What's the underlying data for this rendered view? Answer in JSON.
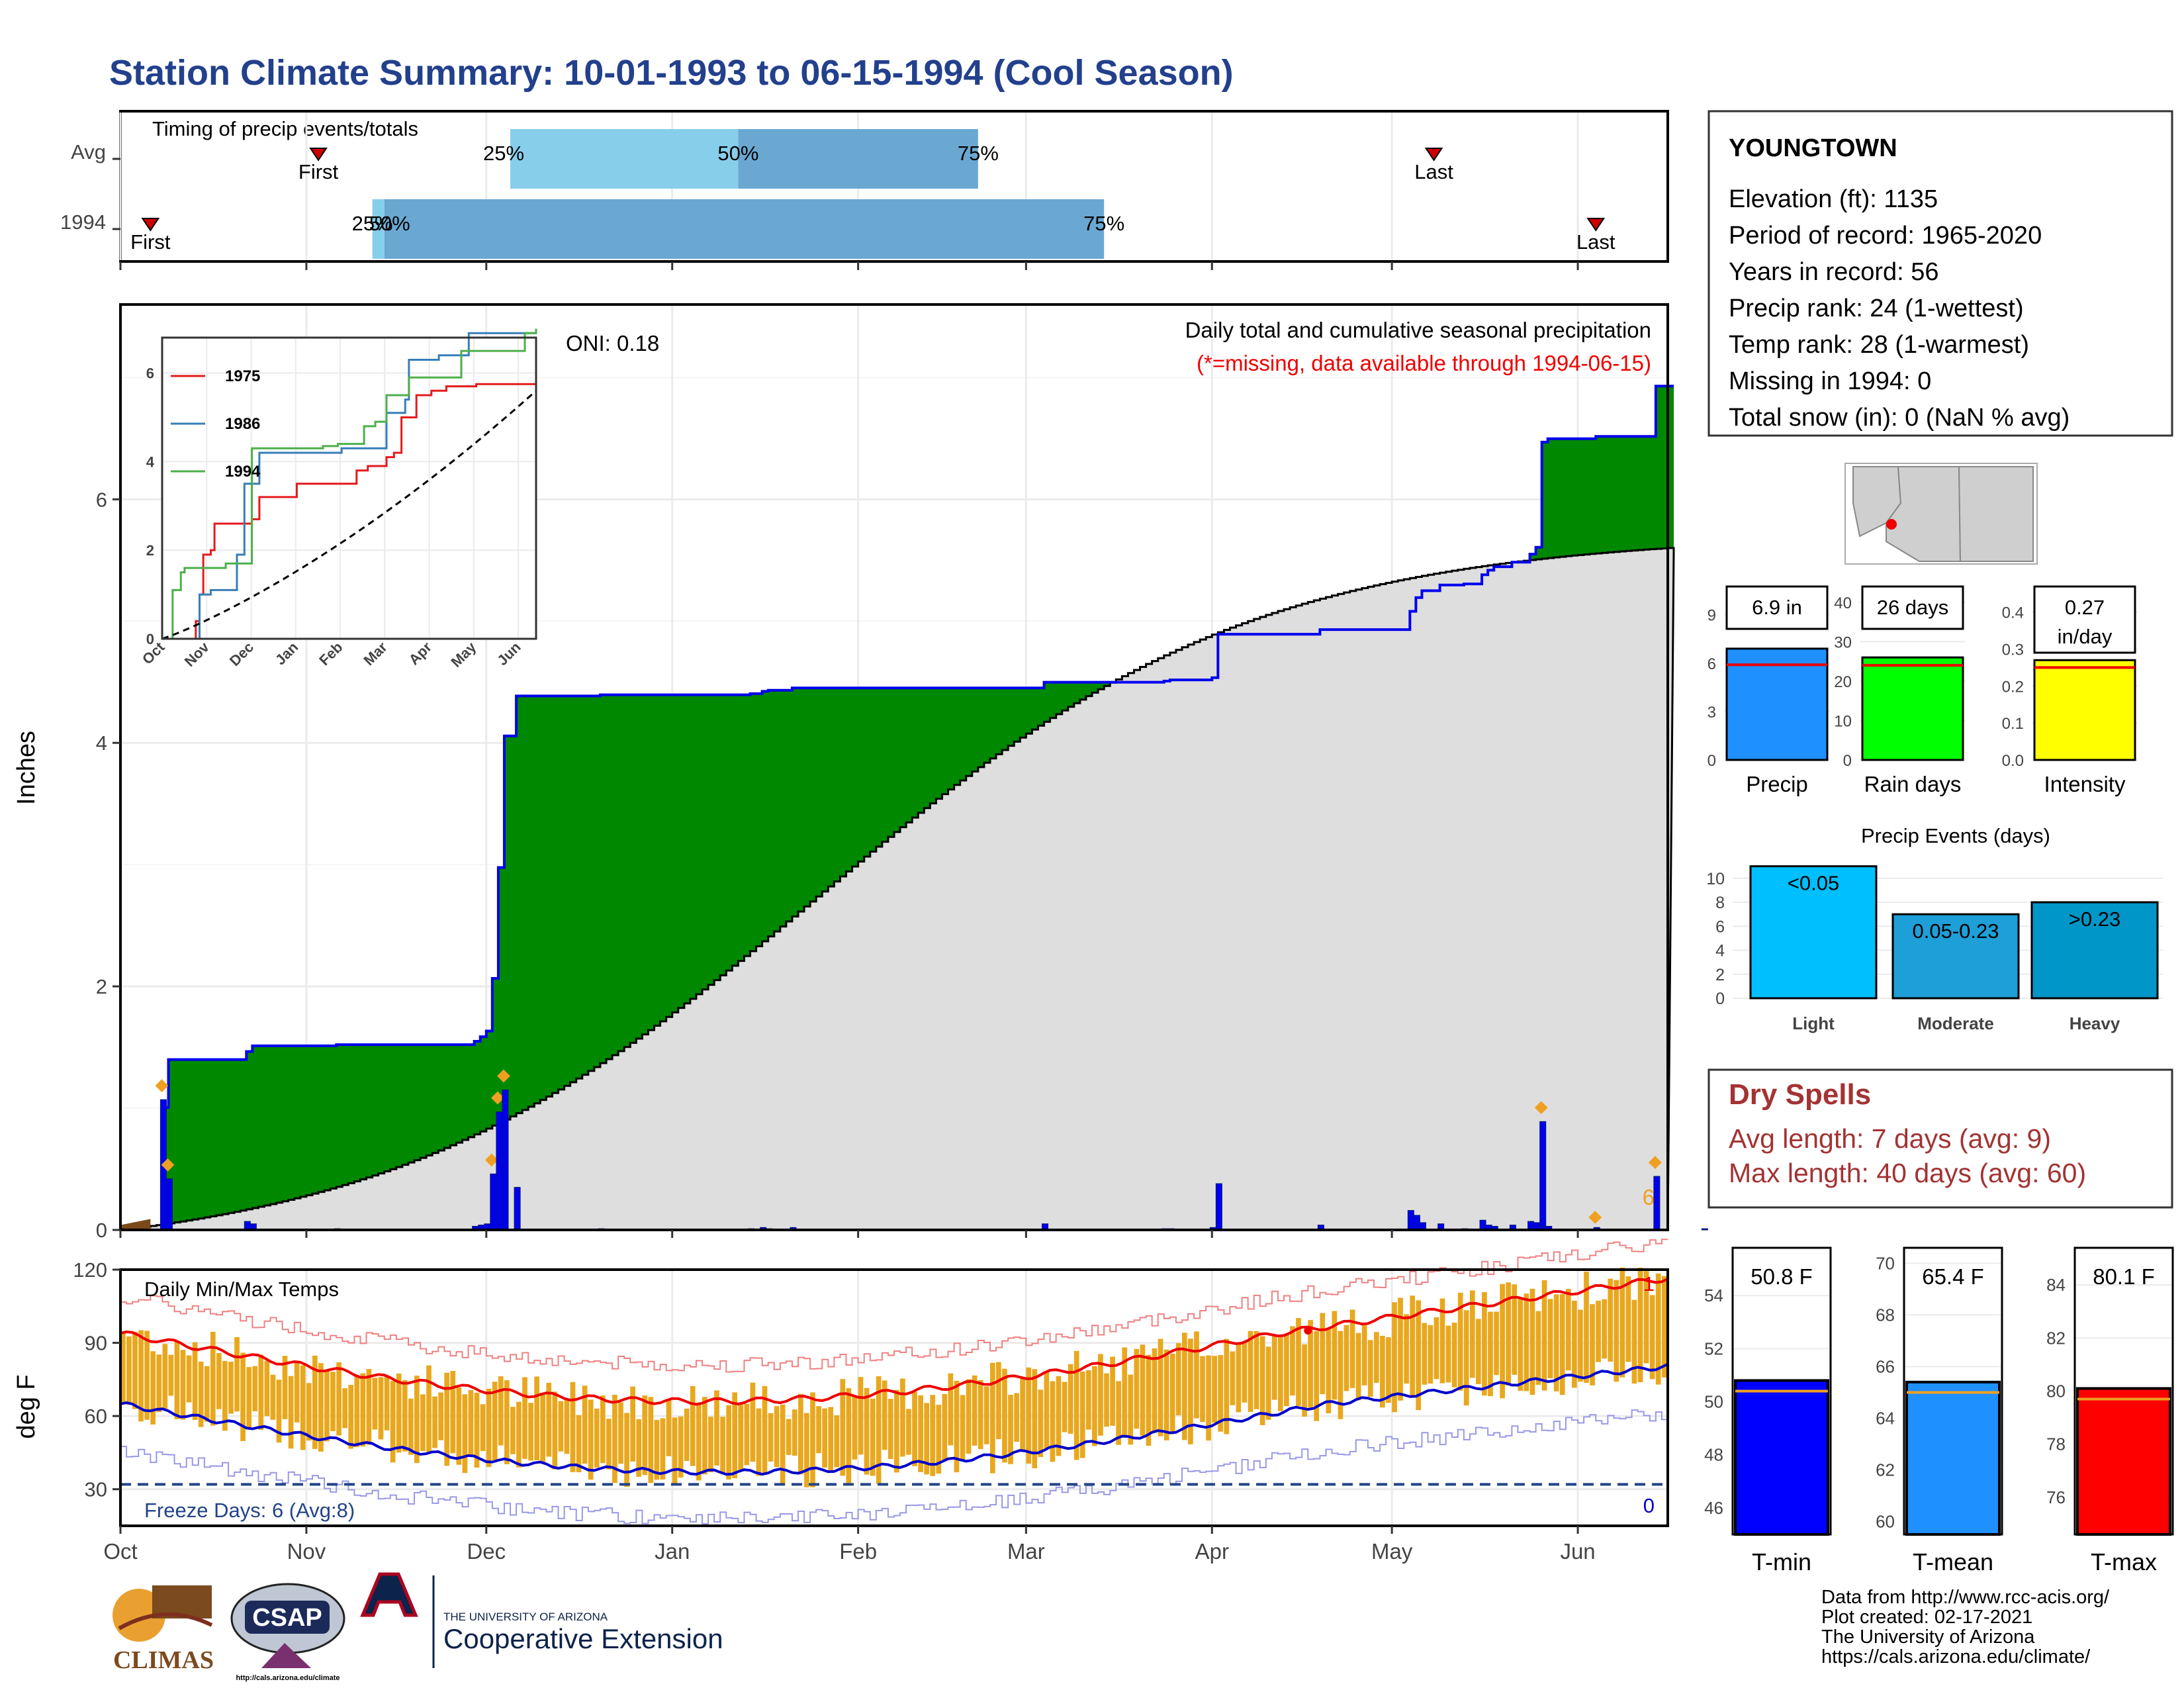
{
  "title": "Station Climate Summary: 10-01-1993 to 06-15-1994 (Cool Season)",
  "colors": {
    "title": "#22408c",
    "precip_fill": "#008800",
    "cum_avg_fill": "#dedede",
    "max_line": "#0000ee",
    "bar": "#0000ee",
    "marker": "#f0a020",
    "temp_bar": "#e8a81e",
    "tmax_line": "#ee0000",
    "tmin_line": "#0000cc",
    "tmax_rec": "#f08080",
    "tmin_rec": "#9898e8",
    "freeze": "#224488",
    "dry": "#a33333"
  },
  "timing": {
    "label": "Timing of precip events/totals",
    "rows": [
      {
        "name": "Avg",
        "first": "First",
        "last": "Last",
        "p25": "25%",
        "p50": "50%",
        "p75": "75%",
        "first_doy": 33,
        "p25_doy": 65,
        "p50_doy": 103,
        "p75_doy": 143,
        "last_doy": 219
      },
      {
        "name": "1994",
        "first": "First",
        "last": "Last",
        "p25": "25%",
        "p50": "50%",
        "p75": "75%",
        "first_doy": 5,
        "p25_doy": 42,
        "p50_doy": 44,
        "p75_doy": 164,
        "last_doy": 246
      }
    ]
  },
  "station": {
    "name": "YOUNGTOWN",
    "lines": [
      "Elevation (ft): 1135",
      "Period of record: 1965-2020",
      "Years in record: 56",
      "Precip rank: 24 (1-wettest)",
      "Temp rank: 28 (1-warmest)",
      "Missing in 1994: 0",
      "Total snow (in): 0 (NaN % avg)"
    ]
  },
  "main_plot": {
    "ylabel": "Inches",
    "oni": "ONI: 0.18",
    "caption": "Daily total and cumulative seasonal precipitation",
    "missing_note": "(*=missing, data available through 1994-06-15)",
    "count_label": "6",
    "month_labels": [
      "Oct",
      "Nov",
      "Dec",
      "Jan",
      "Feb",
      "Mar",
      "Apr",
      "May",
      "Jun"
    ],
    "y_ticks": [
      "0",
      "2",
      "4",
      "6"
    ]
  },
  "inset": {
    "month_labels": [
      "Oct",
      "Nov",
      "Dec",
      "Jan",
      "Feb",
      "Mar",
      "Apr",
      "May",
      "Jun"
    ],
    "y_ticks": [
      "0",
      "2",
      "4",
      "6"
    ],
    "legend": [
      {
        "name": "1975",
        "color": "#e41a1c"
      },
      {
        "name": "1986",
        "color": "#377eb8"
      },
      {
        "name": "1994",
        "color": "#4daf4a"
      }
    ]
  },
  "temp_plot": {
    "ylabel": "deg F",
    "label": "Daily Min/Max Temps",
    "freeze": "Freeze Days: 6 (Avg:8)",
    "y_ticks": [
      "30",
      "60",
      "90",
      "120"
    ],
    "top_count": "1",
    "bottom_count": "0"
  },
  "mini_precip": {
    "panels": [
      {
        "label": "Precip",
        "value_text": "6.9 in",
        "value_line2": "",
        "value": 6.9,
        "avg": 5.9,
        "ymax": 11,
        "ticks": [
          "0",
          "3",
          "6",
          "9"
        ],
        "tick_vals": [
          0,
          3,
          6,
          9
        ],
        "color": "#1e90ff"
      },
      {
        "label": "Rain days",
        "value_text": "26 days",
        "value_line2": "",
        "value": 26,
        "avg": 24,
        "ymax": 45,
        "ticks": [
          "0",
          "10",
          "20",
          "30",
          "40"
        ],
        "tick_vals": [
          0,
          10,
          20,
          30,
          40
        ],
        "color": "#00ff00"
      },
      {
        "label": "Intensity",
        "value_text": "0.27",
        "value_line2": "in/day",
        "value": 0.27,
        "avg": 0.25,
        "ymax": 0.48,
        "ticks": [
          "0.0",
          "0.1",
          "0.2",
          "0.3",
          "0.4"
        ],
        "tick_vals": [
          0,
          0.1,
          0.2,
          0.3,
          0.4
        ],
        "color": "#ffff00"
      }
    ]
  },
  "events": {
    "title": "Precip Events (days)",
    "ticks": [
      "0",
      "2",
      "4",
      "6",
      "8",
      "10"
    ],
    "bars": [
      {
        "cat": "Light",
        "label": "<0.05",
        "value": 11,
        "color": "#00bfff"
      },
      {
        "cat": "Moderate",
        "label": "0.05-0.23",
        "value": 7,
        "color": "#1e9fd8"
      },
      {
        "cat": "Heavy",
        "label": ">0.23",
        "value": 8,
        "color": "#0096c8"
      }
    ]
  },
  "dry": {
    "title": "Dry Spells",
    "avg": "Avg length: 7 days (avg: 9)",
    "max": "Max length: 40 days (avg: 60)"
  },
  "temps_mini": {
    "panels": [
      {
        "label": "T-min",
        "value_text": "50.8 F",
        "value": 50.8,
        "avg": 50.4,
        "ymin": 45,
        "ymax": 55.8,
        "ticks": [
          "46",
          "48",
          "50",
          "52",
          "54"
        ],
        "tick_vals": [
          46,
          48,
          50,
          52,
          54
        ],
        "color": "#0000ff"
      },
      {
        "label": "T-mean",
        "value_text": "65.4 F",
        "value": 65.4,
        "avg": 65.0,
        "ymin": 59.5,
        "ymax": 70.6,
        "ticks": [
          "60",
          "62",
          "64",
          "66",
          "68",
          "70"
        ],
        "tick_vals": [
          60,
          62,
          64,
          66,
          68,
          70
        ],
        "color": "#1e90ff"
      },
      {
        "label": "T-max",
        "value_text": "80.1 F",
        "value": 80.1,
        "avg": 79.7,
        "ymin": 74.6,
        "ymax": 85.4,
        "ticks": [
          "76",
          "78",
          "80",
          "82",
          "84"
        ],
        "tick_vals": [
          76,
          78,
          80,
          82,
          84
        ],
        "color": "#ff0000"
      }
    ]
  },
  "credits": [
    "Data from http://www.rcc-acis.org/",
    "Plot created: 02-17-2021",
    "The University of Arizona",
    "https://cals.arizona.edu/climate/"
  ],
  "logos": {
    "climas": "CLIMAS",
    "csap": "CSAP",
    "csap_url": "http://cals.arizona.edu/climate",
    "ua_top": "THE UNIVERSITY OF ARIZONA",
    "ua_main": "Cooperative Extension"
  }
}
